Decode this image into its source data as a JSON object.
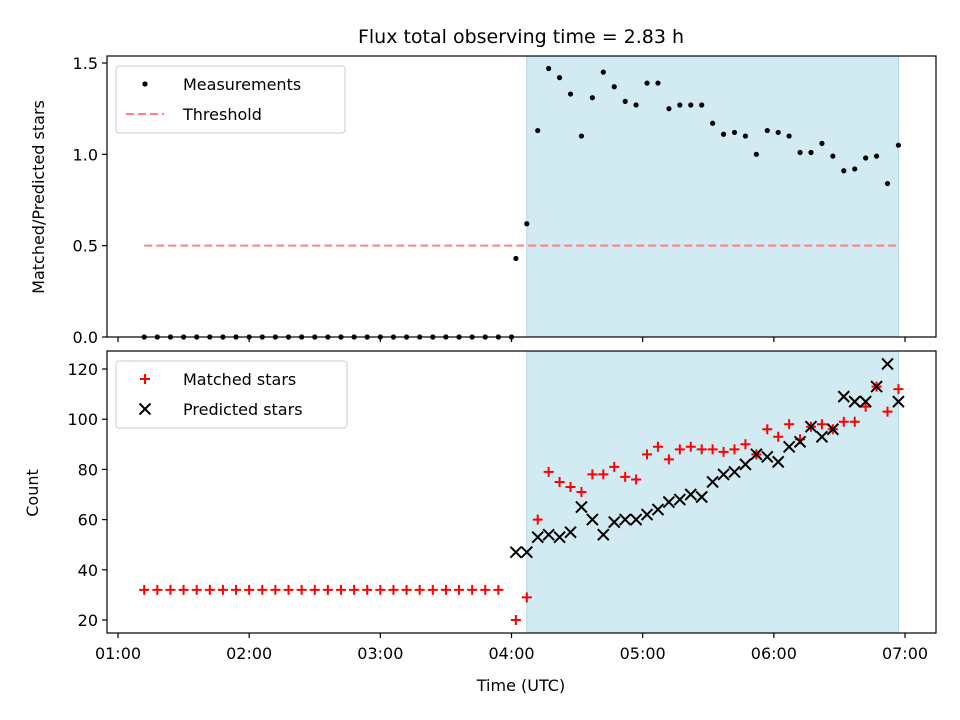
{
  "chart_data": [
    {
      "type": "scatter",
      "title": "Flux total observing time = 2.83 h",
      "xlabel": "",
      "ylabel": "Matched/Predicted stars",
      "ylim": [
        0,
        1.55
      ],
      "xlim": [
        "01:00",
        "07:00"
      ],
      "yticks": [
        "0.0",
        "0.5",
        "1.0",
        "1.5"
      ],
      "legend_position": "upper-left",
      "legend": [
        "Measurements",
        "Threshold"
      ],
      "shaded_interval": [
        "04:07",
        "06:57"
      ],
      "shade_color": "#add8e6",
      "threshold": {
        "name": "Threshold",
        "y": 0.5,
        "x_start": "01:12",
        "x_end": "06:57",
        "color": "#ff7f7f"
      },
      "series": [
        {
          "name": "Measurements",
          "color": "#000000",
          "x": [
            "01:12",
            "01:18",
            "01:24",
            "01:30",
            "01:36",
            "01:42",
            "01:48",
            "01:54",
            "02:00",
            "02:06",
            "02:12",
            "02:18",
            "02:24",
            "02:30",
            "02:36",
            "02:42",
            "02:48",
            "02:54",
            "03:00",
            "03:06",
            "03:12",
            "03:18",
            "03:24",
            "03:30",
            "03:36",
            "03:42",
            "03:48",
            "03:54",
            "04:00",
            "04:02",
            "04:07",
            "04:12",
            "04:17",
            "04:22",
            "04:27",
            "04:32",
            "04:37",
            "04:42",
            "04:47",
            "04:52",
            "04:57",
            "05:02",
            "05:07",
            "05:12",
            "05:17",
            "05:22",
            "05:27",
            "05:32",
            "05:37",
            "05:42",
            "05:47",
            "05:52",
            "05:57",
            "06:02",
            "06:07",
            "06:12",
            "06:17",
            "06:22",
            "06:27",
            "06:32",
            "06:37",
            "06:42",
            "06:47",
            "06:52",
            "06:57"
          ],
          "y": [
            0,
            0,
            0,
            0,
            0,
            0,
            0,
            0,
            0,
            0,
            0,
            0,
            0,
            0,
            0,
            0,
            0,
            0,
            0,
            0,
            0,
            0,
            0,
            0,
            0,
            0,
            0,
            0,
            0,
            0.43,
            0.62,
            1.13,
            1.47,
            1.42,
            1.33,
            1.1,
            1.31,
            1.45,
            1.37,
            1.29,
            1.27,
            1.39,
            1.39,
            1.25,
            1.27,
            1.27,
            1.27,
            1.17,
            1.11,
            1.12,
            1.1,
            1.0,
            1.13,
            1.12,
            1.1,
            1.01,
            1.01,
            1.06,
            0.99,
            0.91,
            0.92,
            0.98,
            0.99,
            0.84,
            1.05
          ]
        }
      ]
    },
    {
      "type": "scatter",
      "title": "",
      "xlabel": "Time (UTC)",
      "ylabel": "Count",
      "ylim": [
        15,
        128
      ],
      "xlim": [
        "01:00",
        "07:00"
      ],
      "xticks": [
        "01:00",
        "02:00",
        "03:00",
        "04:00",
        "05:00",
        "06:00",
        "07:00"
      ],
      "yticks": [
        "20",
        "40",
        "60",
        "80",
        "100",
        "120"
      ],
      "legend_position": "upper-left",
      "legend": [
        "Matched stars",
        "Predicted stars"
      ],
      "shaded_interval": [
        "04:07",
        "06:57"
      ],
      "shade_color": "#add8e6",
      "series": [
        {
          "name": "Matched stars",
          "color": "#ff0000",
          "marker": "+",
          "x": [
            "01:12",
            "01:18",
            "01:24",
            "01:30",
            "01:36",
            "01:42",
            "01:48",
            "01:54",
            "02:00",
            "02:06",
            "02:12",
            "02:18",
            "02:24",
            "02:30",
            "02:36",
            "02:42",
            "02:48",
            "02:54",
            "03:00",
            "03:06",
            "03:12",
            "03:18",
            "03:24",
            "03:30",
            "03:36",
            "03:42",
            "03:48",
            "03:54",
            "04:02",
            "04:07",
            "04:12",
            "04:17",
            "04:22",
            "04:27",
            "04:32",
            "04:37",
            "04:42",
            "04:47",
            "04:52",
            "04:57",
            "05:02",
            "05:07",
            "05:12",
            "05:17",
            "05:22",
            "05:27",
            "05:32",
            "05:37",
            "05:42",
            "05:47",
            "05:52",
            "05:57",
            "06:02",
            "06:07",
            "06:12",
            "06:17",
            "06:22",
            "06:27",
            "06:32",
            "06:37",
            "06:42",
            "06:47",
            "06:52",
            "06:57"
          ],
          "y": [
            32,
            32,
            32,
            32,
            32,
            32,
            32,
            32,
            32,
            32,
            32,
            32,
            32,
            32,
            32,
            32,
            32,
            32,
            32,
            32,
            32,
            32,
            32,
            32,
            32,
            32,
            32,
            32,
            20,
            29,
            60,
            79,
            75,
            73,
            71,
            78,
            78,
            81,
            77,
            76,
            86,
            89,
            84,
            88,
            89,
            88,
            88,
            87,
            88,
            90,
            86,
            96,
            93,
            98,
            92,
            97,
            98,
            96,
            99,
            99,
            105,
            113,
            103,
            112
          ]
        },
        {
          "name": "Predicted stars",
          "color": "#000000",
          "marker": "x",
          "x": [
            "04:02",
            "04:07",
            "04:12",
            "04:17",
            "04:22",
            "04:27",
            "04:32",
            "04:37",
            "04:42",
            "04:47",
            "04:52",
            "04:57",
            "05:02",
            "05:07",
            "05:12",
            "05:17",
            "05:22",
            "05:27",
            "05:32",
            "05:37",
            "05:42",
            "05:47",
            "05:52",
            "05:57",
            "06:02",
            "06:07",
            "06:12",
            "06:17",
            "06:22",
            "06:27",
            "06:32",
            "06:37",
            "06:42",
            "06:47",
            "06:52",
            "06:57"
          ],
          "y": [
            47,
            47,
            53,
            54,
            53,
            55,
            65,
            60,
            54,
            59,
            60,
            60,
            62,
            64,
            67,
            68,
            70,
            69,
            75,
            78,
            79,
            82,
            86,
            85,
            83,
            89,
            91,
            97,
            93,
            96,
            109,
            107,
            107,
            113,
            122,
            107
          ]
        }
      ]
    }
  ]
}
